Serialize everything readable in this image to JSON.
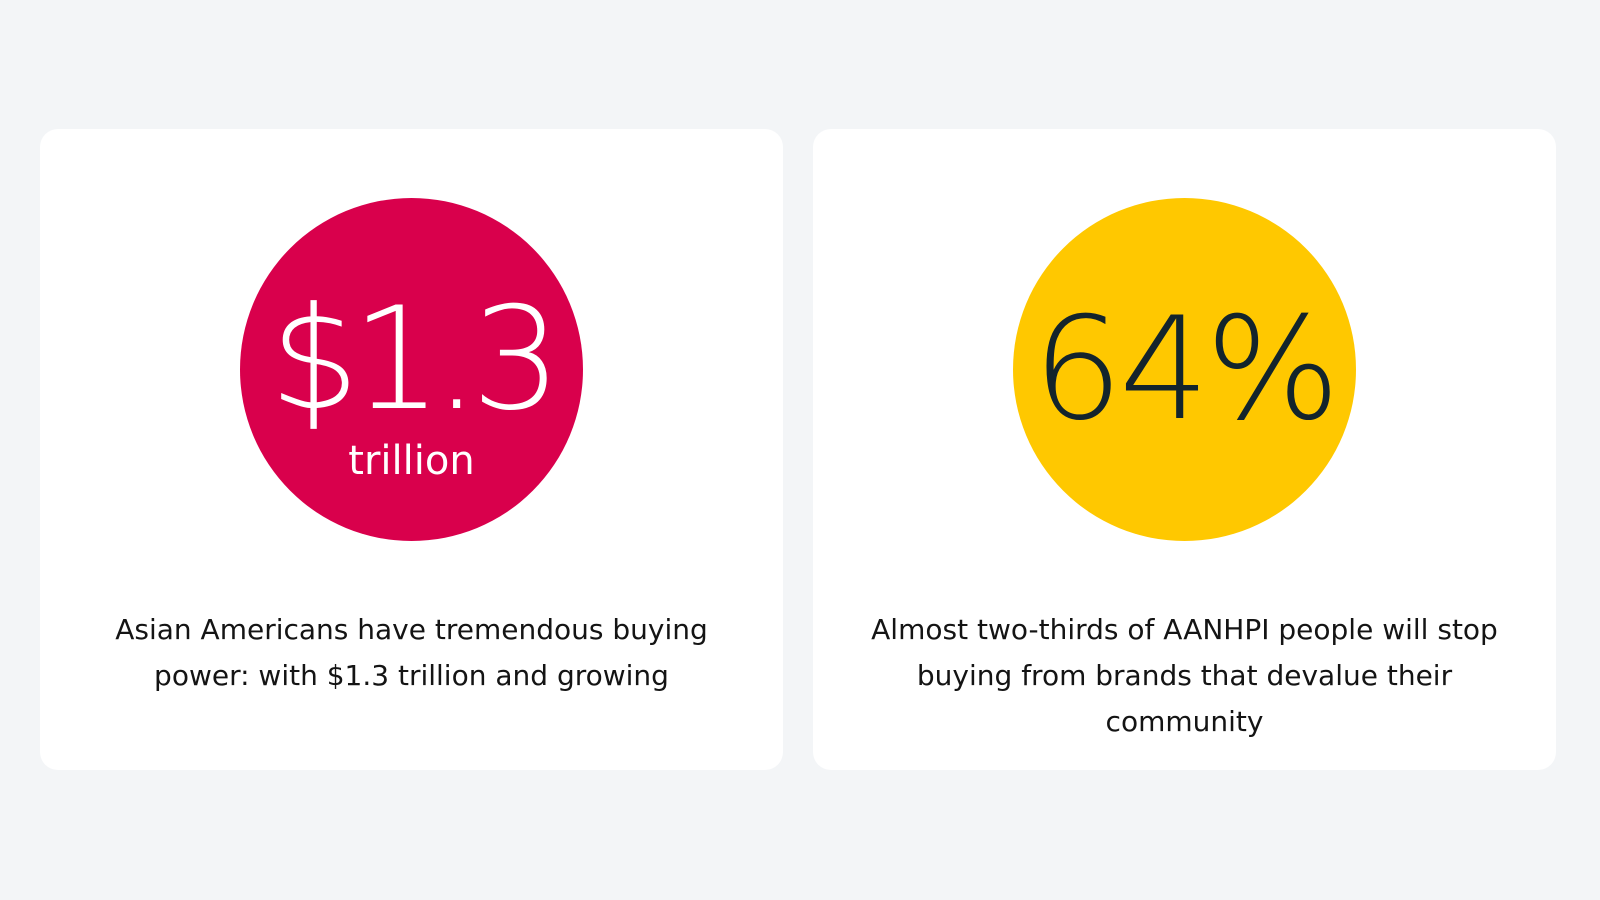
{
  "cards": [
    {
      "stat": "$1.3",
      "unit": "trillion",
      "circle_color": "#d9004c",
      "text_color": "#ffffff",
      "caption": "Asian Americans have tremendous buying power: with $1.3 trillion and growing"
    },
    {
      "stat": "64%",
      "unit": "",
      "circle_color": "#ffc800",
      "text_color": "#13242c",
      "caption": "Almost two-thirds of AANHPI people will stop buying from brands that devalue their community"
    }
  ]
}
